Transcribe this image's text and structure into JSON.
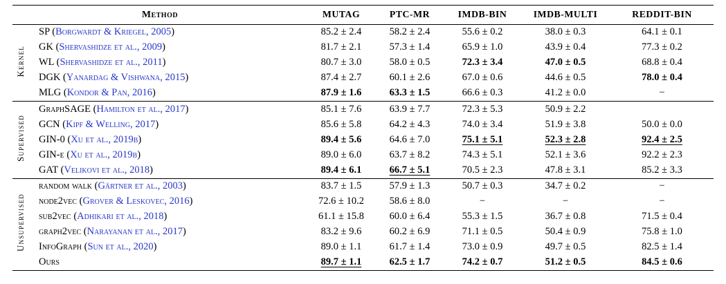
{
  "colors": {
    "citation_link": "#2737c8",
    "text": "#000000",
    "rule": "#000000",
    "background": "#ffffff"
  },
  "table": {
    "columns": [
      "Method",
      "MUTAG",
      "PTC-MR",
      "IMDB-BIN",
      "IMDB-MULTI",
      "REDDIT-BIN"
    ],
    "groups": [
      {
        "id": "kernel",
        "label": "Kernel",
        "rows": [
          {
            "name": "SP",
            "cite": "Borgwardt & Kriegel, 2005",
            "cells": [
              {
                "t": "85.2 ± 2.4",
                "s": ""
              },
              {
                "t": "58.2 ± 2.4",
                "s": ""
              },
              {
                "t": "55.6 ± 0.2",
                "s": ""
              },
              {
                "t": "38.0 ± 0.3",
                "s": ""
              },
              {
                "t": "64.1 ± 0.1",
                "s": ""
              }
            ]
          },
          {
            "name": "GK",
            "cite": "Shervashidze et al., 2009",
            "cells": [
              {
                "t": "81.7 ± 2.1",
                "s": ""
              },
              {
                "t": "57.3 ± 1.4",
                "s": ""
              },
              {
                "t": "65.9 ± 1.0",
                "s": ""
              },
              {
                "t": "43.9 ± 0.4",
                "s": ""
              },
              {
                "t": "77.3 ± 0.2",
                "s": ""
              }
            ]
          },
          {
            "name": "WL",
            "cite": "Shervashidze et al., 2011",
            "cells": [
              {
                "t": "80.7 ± 3.0",
                "s": ""
              },
              {
                "t": "58.0 ± 0.5",
                "s": ""
              },
              {
                "t": "72.3 ± 3.4",
                "s": "b"
              },
              {
                "t": "47.0 ± 0.5",
                "s": "b"
              },
              {
                "t": "68.8 ± 0.4",
                "s": ""
              }
            ]
          },
          {
            "name": "DGK",
            "cite": "Yanardag & Vishwana, 2015",
            "cells": [
              {
                "t": "87.4 ± 2.7",
                "s": ""
              },
              {
                "t": "60.1 ± 2.6",
                "s": ""
              },
              {
                "t": "67.0 ± 0.6",
                "s": ""
              },
              {
                "t": "44.6 ± 0.5",
                "s": ""
              },
              {
                "t": "78.0 ± 0.4",
                "s": "b"
              }
            ]
          },
          {
            "name": "MLG",
            "cite": "Kondor & Pan, 2016",
            "cells": [
              {
                "t": "87.9 ± 1.6",
                "s": "b"
              },
              {
                "t": "63.3 ± 1.5",
                "s": "b"
              },
              {
                "t": "66.6 ± 0.3",
                "s": ""
              },
              {
                "t": "41.2 ± 0.0",
                "s": ""
              },
              {
                "t": "−",
                "s": ""
              }
            ]
          }
        ]
      },
      {
        "id": "supervised",
        "label": "Supervised",
        "rows": [
          {
            "name": "GraphSAGE",
            "cite": "Hamilton et al., 2017",
            "cells": [
              {
                "t": "85.1 ± 7.6",
                "s": ""
              },
              {
                "t": "63.9 ± 7.7",
                "s": ""
              },
              {
                "t": "72.3 ± 5.3",
                "s": ""
              },
              {
                "t": "50.9 ± 2.2",
                "s": ""
              },
              {
                "t": "",
                "s": ""
              }
            ]
          },
          {
            "name": "GCN",
            "cite": "Kipf & Welling, 2017",
            "cells": [
              {
                "t": "85.6 ± 5.8",
                "s": ""
              },
              {
                "t": "64.2 ± 4.3",
                "s": ""
              },
              {
                "t": "74.0 ± 3.4",
                "s": ""
              },
              {
                "t": "51.9 ± 3.8",
                "s": ""
              },
              {
                "t": "50.0 ± 0.0",
                "s": ""
              }
            ]
          },
          {
            "name": "GIN-0",
            "cite": "Xu et al., 2019b",
            "cells": [
              {
                "t": "89.4 ± 5.6",
                "s": "b"
              },
              {
                "t": "64.6 ± 7.0",
                "s": ""
              },
              {
                "t": "75.1 ± 5.1",
                "s": "bu"
              },
              {
                "t": "52.3 ± 2.8",
                "s": "bu"
              },
              {
                "t": "92.4 ± 2.5",
                "s": "bu"
              }
            ]
          },
          {
            "name": "GIN-ϵ",
            "cite": "Xu et al., 2019b",
            "cells": [
              {
                "t": "89.0 ± 6.0",
                "s": ""
              },
              {
                "t": "63.7 ± 8.2",
                "s": ""
              },
              {
                "t": "74.3 ± 5.1",
                "s": ""
              },
              {
                "t": "52.1 ± 3.6",
                "s": ""
              },
              {
                "t": "92.2 ± 2.3",
                "s": ""
              }
            ]
          },
          {
            "name": "GAT",
            "cite": "Velikovi et al., 2018",
            "cells": [
              {
                "t": "89.4 ± 6.1",
                "s": "b"
              },
              {
                "t": "66.7 ± 5.1",
                "s": "bu"
              },
              {
                "t": "70.5 ± 2.3",
                "s": ""
              },
              {
                "t": "47.8 ± 3.1",
                "s": ""
              },
              {
                "t": "85.2 ± 3.3",
                "s": ""
              }
            ]
          }
        ]
      },
      {
        "id": "unsupervised",
        "label": "Unsupervised",
        "rows": [
          {
            "name": "random walk",
            "cite": "Gärtner et al., 2003",
            "cells": [
              {
                "t": "83.7 ± 1.5",
                "s": ""
              },
              {
                "t": "57.9 ± 1.3",
                "s": ""
              },
              {
                "t": "50.7 ± 0.3",
                "s": ""
              },
              {
                "t": "34.7 ± 0.2",
                "s": ""
              },
              {
                "t": "−",
                "s": ""
              }
            ]
          },
          {
            "name": "node2vec",
            "cite": "Grover & Leskovec, 2016",
            "cells": [
              {
                "t": "72.6 ± 10.2",
                "s": ""
              },
              {
                "t": "58.6 ± 8.0",
                "s": ""
              },
              {
                "t": "−",
                "s": ""
              },
              {
                "t": "−",
                "s": ""
              },
              {
                "t": "−",
                "s": ""
              }
            ]
          },
          {
            "name": "sub2vec",
            "cite": "Adhikari et al., 2018",
            "cells": [
              {
                "t": "61.1 ± 15.8",
                "s": ""
              },
              {
                "t": "60.0 ± 6.4",
                "s": ""
              },
              {
                "t": "55.3 ± 1.5",
                "s": ""
              },
              {
                "t": "36.7 ± 0.8",
                "s": ""
              },
              {
                "t": "71.5 ± 0.4",
                "s": ""
              }
            ]
          },
          {
            "name": "graph2vec",
            "cite": "Narayanan et al., 2017",
            "cells": [
              {
                "t": "83.2 ± 9.6",
                "s": ""
              },
              {
                "t": "60.2 ± 6.9",
                "s": ""
              },
              {
                "t": "71.1 ± 0.5",
                "s": ""
              },
              {
                "t": "50.4 ± 0.9",
                "s": ""
              },
              {
                "t": "75.8 ± 1.0",
                "s": ""
              }
            ]
          },
          {
            "name": "InfoGraph",
            "cite": "Sun et al., 2020",
            "cells": [
              {
                "t": "89.0 ± 1.1",
                "s": ""
              },
              {
                "t": "61.7 ± 1.4",
                "s": ""
              },
              {
                "t": "73.0 ± 0.9",
                "s": ""
              },
              {
                "t": "49.7 ± 0.5",
                "s": ""
              },
              {
                "t": "82.5 ± 1.4",
                "s": ""
              }
            ]
          },
          {
            "name": "Ours",
            "cite": "",
            "cells": [
              {
                "t": "89.7 ± 1.1",
                "s": "bu"
              },
              {
                "t": "62.5 ± 1.7",
                "s": "b"
              },
              {
                "t": "74.2 ± 0.7",
                "s": "b"
              },
              {
                "t": "51.2 ± 0.5",
                "s": "b"
              },
              {
                "t": "84.5 ± 0.6",
                "s": "b"
              }
            ]
          }
        ]
      }
    ]
  }
}
